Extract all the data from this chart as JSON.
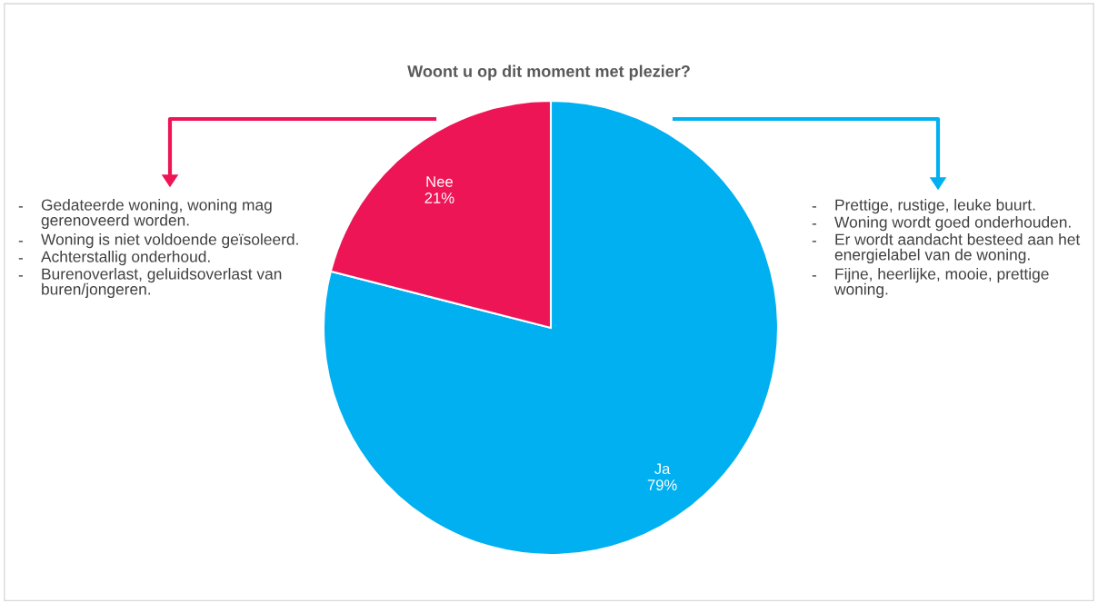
{
  "chart_data": {
    "type": "pie",
    "title": "Woont u op dit moment met plezier?",
    "categories": [
      "Ja",
      "Nee"
    ],
    "values": [
      79,
      21
    ],
    "colors": [
      "#00b0f0",
      "#ee1556"
    ],
    "value_labels": [
      "79%",
      "21%"
    ],
    "legend": false,
    "annotations": [
      "- Gedateerde woning, woning mag\ngerenoveerd worden.",
      "- Woning is niet voldoende geïsoleerd.",
      "- Achterstallig onderhoud.",
      "- Burenoverlast, geluidsoverlast van\nburen/jongeren.",
      "- Prettige, rustige, leuke buurt.",
      "- Woning wordt goed onderhouden.",
      "- Er wordt aandacht besteed aan het\nenergielabel van de woning.",
      "- Fijne, heerlijke, mooie, prettige\nwoning."
    ]
  }
}
